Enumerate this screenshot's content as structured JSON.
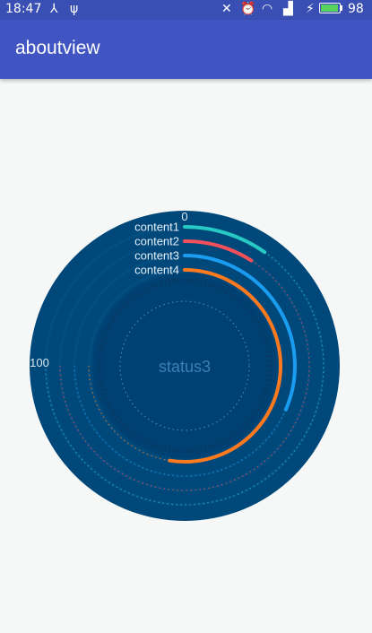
{
  "status_bar": {
    "time": "18:47",
    "battery_level": "98",
    "battery_fraction": 0.98,
    "battery_color": "#58d25f",
    "icons": [
      "usb-hub-icon",
      "usb-icon",
      "mute-icon",
      "alarm-icon",
      "wifi-icon",
      "signal-icon",
      "charging-icon",
      "battery-icon"
    ]
  },
  "app_bar": {
    "title": "aboutview",
    "color": "#4055c2"
  },
  "chart": {
    "center_label": "status3",
    "scale_start": "0",
    "scale_end": "100",
    "max_value": 100,
    "background": "#00487a",
    "items": [
      {
        "label": "content1",
        "value": 13,
        "color": "#26c9c3"
      },
      {
        "label": "content2",
        "value": 12,
        "color": "#f2505a"
      },
      {
        "label": "content3",
        "value": 42,
        "color": "#1a9cf0"
      },
      {
        "label": "content4",
        "value": 70,
        "color": "#ff7a1e"
      }
    ]
  }
}
